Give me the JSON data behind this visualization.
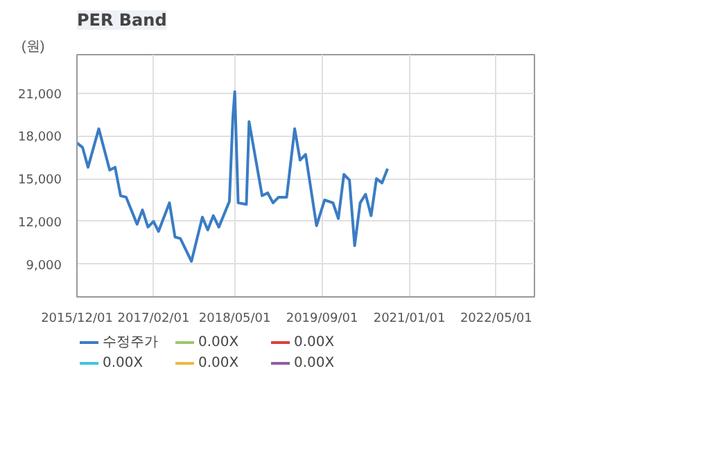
{
  "chart_data": {
    "type": "line",
    "title": "PER Band",
    "ylabel": "(원)",
    "x": [
      "2015-12-01",
      "2016-01-01",
      "2016-02-01",
      "2016-04-01",
      "2016-06-01",
      "2016-07-01",
      "2016-08-01",
      "2016-09-01",
      "2016-11-01",
      "2016-12-01",
      "2017-01-01",
      "2017-02-01",
      "2017-03-01",
      "2017-05-01",
      "2017-06-01",
      "2017-07-01",
      "2017-09-01",
      "2017-11-01",
      "2017-12-01",
      "2018-01-01",
      "2018-02-01",
      "2018-04-01",
      "2018-04-20",
      "2018-05-01",
      "2018-05-20",
      "2018-07-05",
      "2018-07-20",
      "2018-10-01",
      "2018-11-01",
      "2018-12-01",
      "2019-01-01",
      "2019-02-15",
      "2019-04-01",
      "2019-05-01",
      "2019-06-01",
      "2019-08-01",
      "2019-09-15",
      "2019-11-01",
      "2019-12-01",
      "2020-01-01",
      "2020-02-01",
      "2020-03-01",
      "2020-04-01",
      "2020-05-01",
      "2020-06-01",
      "2020-07-01",
      "2020-08-01",
      "2020-09-01"
    ],
    "series": [
      {
        "name": "수정주가",
        "color": "#3a7cc4",
        "values": [
          17500,
          17200,
          15800,
          18500,
          15600,
          15800,
          13800,
          13700,
          11800,
          12800,
          11600,
          12000,
          11300,
          13300,
          10900,
          10800,
          9200,
          12300,
          11400,
          12400,
          11600,
          13400,
          19200,
          21100,
          13300,
          13200,
          19000,
          13800,
          14000,
          13300,
          13700,
          13700,
          18500,
          16300,
          16700,
          11700,
          13500,
          13300,
          12200,
          15300,
          14900,
          10300,
          13300,
          13900,
          12400,
          15000,
          14700,
          15700
        ]
      },
      {
        "name": "0.00X",
        "color": "#3ec6e0",
        "values": [
          null,
          null,
          null,
          null,
          null,
          null,
          null,
          null,
          null,
          null,
          null,
          null,
          null,
          null,
          null,
          null,
          null,
          null,
          null,
          null,
          null,
          null,
          null,
          null,
          null,
          null,
          null,
          null,
          null,
          null,
          null,
          null,
          null,
          null,
          null,
          null,
          null,
          null,
          null,
          null,
          null,
          null,
          null,
          null,
          null,
          null,
          null,
          null
        ]
      },
      {
        "name": "0.00X",
        "color": "#9dc66b",
        "values": [
          null,
          null,
          null,
          null,
          null,
          null,
          null,
          null,
          null,
          null,
          null,
          null,
          null,
          null,
          null,
          null,
          null,
          null,
          null,
          null,
          null,
          null,
          null,
          null,
          null,
          null,
          null,
          null,
          null,
          null,
          null,
          null,
          null,
          null,
          null,
          null,
          null,
          null,
          null,
          null,
          null,
          null,
          null,
          null,
          null,
          null,
          null,
          null
        ]
      },
      {
        "name": "0.00X",
        "color": "#f0b840",
        "values": [
          null,
          null,
          null,
          null,
          null,
          null,
          null,
          null,
          null,
          null,
          null,
          null,
          null,
          null,
          null,
          null,
          null,
          null,
          null,
          null,
          null,
          null,
          null,
          null,
          null,
          null,
          null,
          null,
          null,
          null,
          null,
          null,
          null,
          null,
          null,
          null,
          null,
          null,
          null,
          null,
          null,
          null,
          null,
          null,
          null,
          null,
          null,
          null
        ]
      },
      {
        "name": "0.00X",
        "color": "#d9413d",
        "values": [
          null,
          null,
          null,
          null,
          null,
          null,
          null,
          null,
          null,
          null,
          null,
          null,
          null,
          null,
          null,
          null,
          null,
          null,
          null,
          null,
          null,
          null,
          null,
          null,
          null,
          null,
          null,
          null,
          null,
          null,
          null,
          null,
          null,
          null,
          null,
          null,
          null,
          null,
          null,
          null,
          null,
          null,
          null,
          null,
          null,
          null,
          null,
          null
        ]
      },
      {
        "name": "0.00X",
        "color": "#8e5ea2",
        "values": [
          null,
          null,
          null,
          null,
          null,
          null,
          null,
          null,
          null,
          null,
          null,
          null,
          null,
          null,
          null,
          null,
          null,
          null,
          null,
          null,
          null,
          null,
          null,
          null,
          null,
          null,
          null,
          null,
          null,
          null,
          null,
          null,
          null,
          null,
          null,
          null,
          null,
          null,
          null,
          null,
          null,
          null,
          null,
          null,
          null,
          null,
          null,
          null
        ]
      }
    ],
    "xlim": [
      "2015-12-01",
      "2022-12-01"
    ],
    "xticks": [
      {
        "value": "2015-12-01",
        "label": "2015/12/01"
      },
      {
        "value": "2017-02-01",
        "label": "2017/02/01"
      },
      {
        "value": "2018-05-01",
        "label": "2018/05/01"
      },
      {
        "value": "2019-09-01",
        "label": "2019/09/01"
      },
      {
        "value": "2021-01-01",
        "label": "2021/01/01"
      },
      {
        "value": "2022-05-01",
        "label": "2022/05/01"
      }
    ],
    "ylim": [
      6700,
      23700
    ],
    "yticks": [
      {
        "value": 9000,
        "label": "9,000"
      },
      {
        "value": 12000,
        "label": "12,000"
      },
      {
        "value": 15000,
        "label": "15,000"
      },
      {
        "value": 18000,
        "label": "18,000"
      },
      {
        "value": 21000,
        "label": "21,000"
      }
    ],
    "grid": true,
    "legend": "bottom",
    "line_style": "solid"
  }
}
